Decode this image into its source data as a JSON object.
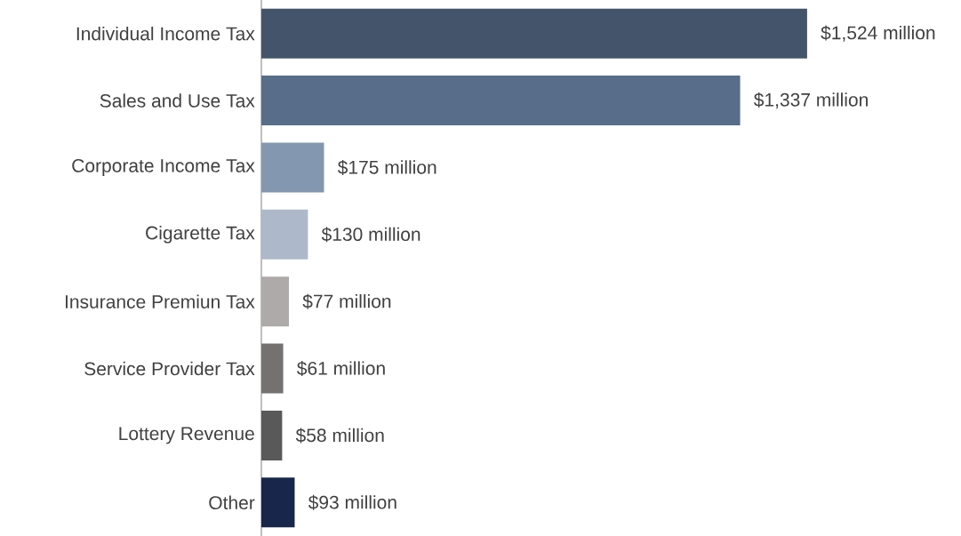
{
  "chart_data": {
    "type": "bar",
    "orientation": "horizontal",
    "categories": [
      "Individual Income Tax",
      "Sales and Use Tax",
      "Corporate Income Tax",
      "Cigarette Tax",
      "Insurance Premiun Tax",
      "Service Provider Tax",
      "Lottery Revenue",
      "Other"
    ],
    "values": [
      1524,
      1337,
      175,
      130,
      77,
      61,
      58,
      93
    ],
    "colors": [
      "#44546a",
      "#576d8a",
      "#8497b0",
      "#adb9ca",
      "#aeaaaa",
      "#767171",
      "#595959",
      "#17264a"
    ],
    "value_labels": [
      "$1,524 million",
      "$1,337 million",
      "$175 million",
      "$130 million",
      "$77 million",
      "$61 million",
      "$58 million",
      "$93 million"
    ]
  }
}
